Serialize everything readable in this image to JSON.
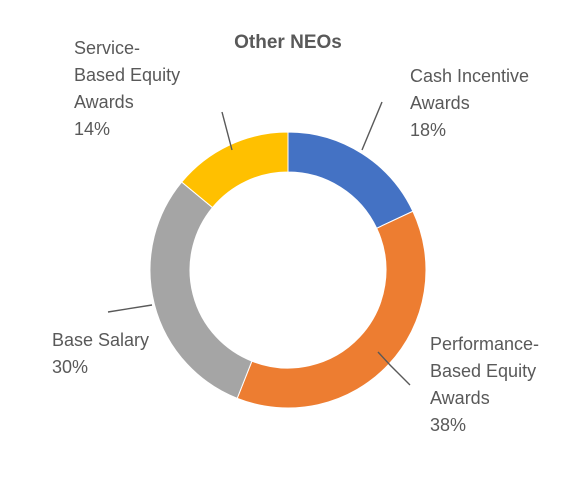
{
  "chart_data": {
    "type": "pie",
    "style": "donut",
    "title": "Other NEOs",
    "slices": [
      {
        "label": "Cash Incentive Awards",
        "label_lines": [
          "Cash Incentive",
          "Awards"
        ],
        "value": 18,
        "value_text": "18%",
        "color": "#4472C4"
      },
      {
        "label": "Performance-Based Equity Awards",
        "label_lines": [
          "Performance-",
          "Based Equity",
          "Awards"
        ],
        "value": 38,
        "value_text": "38%",
        "color": "#ED7D31"
      },
      {
        "label": "Base Salary",
        "label_lines": [
          "Base Salary"
        ],
        "value": 30,
        "value_text": "30%",
        "color": "#A5A5A5"
      },
      {
        "label": "Service-Based Equity Awards",
        "label_lines": [
          "Service-",
          "Based Equity",
          "Awards"
        ],
        "value": 14,
        "value_text": "14%",
        "color": "#FFC000"
      }
    ],
    "legend": "none"
  }
}
